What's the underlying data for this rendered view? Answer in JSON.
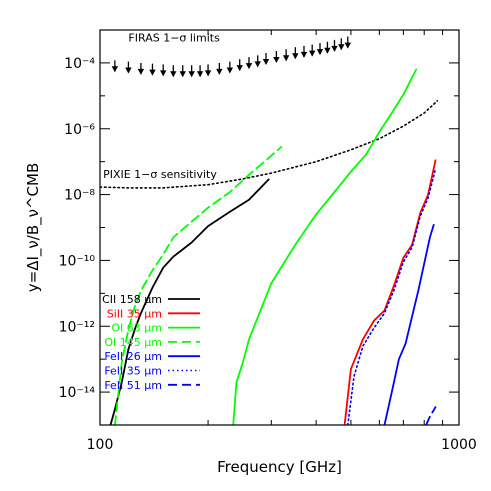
{
  "chart_data": {
    "type": "line",
    "xlabel": "Frequency [GHz]",
    "ylabel": "y=ΔI_ν/B_ν^CMB",
    "x_scale": "log",
    "y_scale": "log",
    "xlim": [
      100,
      1000
    ],
    "ylim": [
      1e-15,
      0.001
    ],
    "x_ticks": [
      {
        "value": 100,
        "label": "100"
      },
      {
        "value": 1000,
        "label": "1000"
      }
    ],
    "y_ticks": [
      {
        "value": 0.0001,
        "label": "10⁻⁴"
      },
      {
        "value": 1e-06,
        "label": "10⁻⁶"
      },
      {
        "value": 1e-08,
        "label": "10⁻⁸"
      },
      {
        "value": 1e-10,
        "label": "10⁻¹⁰"
      },
      {
        "value": 1e-12,
        "label": "10⁻¹²"
      },
      {
        "value": 1e-14,
        "label": "10⁻¹⁴"
      }
    ],
    "annotations": [
      {
        "text": "FIRAS 1−σ limits",
        "x": 120,
        "y": 0.00045
      },
      {
        "text": "PIXIE 1−σ sensitivity",
        "x": 102,
        "y": 3.2e-08
      }
    ],
    "series": [
      {
        "name": "CII 158 μm",
        "color": "#000000",
        "dash": "solid",
        "x": [
          107,
          110,
          115,
          120,
          125,
          130,
          140,
          150,
          160,
          180,
          200,
          230,
          260,
          280,
          295
        ],
        "y": [
          1e-15,
          3e-15,
          2e-14,
          2e-13,
          8e-13,
          2.5e-12,
          1.5e-11,
          6e-11,
          1.3e-10,
          3.5e-10,
          1.1e-09,
          3e-09,
          7e-09,
          1.6e-08,
          2.9e-08
        ]
      },
      {
        "name": "SiII 35 μm",
        "color": "#ff0000",
        "dash": "solid",
        "x": [
          480,
          500,
          540,
          580,
          620,
          660,
          700,
          740,
          780,
          820,
          860
        ],
        "y": [
          1e-15,
          5e-14,
          4e-13,
          1.5e-12,
          3e-12,
          1.8e-11,
          1.2e-10,
          3e-10,
          2.8e-09,
          1e-08,
          1.1e-07
        ]
      },
      {
        "name": "OI 63 μm",
        "color": "#00ff00",
        "dash": "solid",
        "x": [
          235,
          240,
          250,
          260,
          280,
          300,
          350,
          400,
          450,
          500,
          550,
          600,
          650,
          700,
          760
        ],
        "y": [
          1e-15,
          2e-14,
          8e-14,
          4e-13,
          3e-12,
          2e-11,
          3e-10,
          2.5e-09,
          1.2e-08,
          5e-08,
          1.6e-07,
          8e-07,
          3e-06,
          1.1e-05,
          6.3e-05
        ]
      },
      {
        "name": "OI 145 μm",
        "color": "#00ff00",
        "dash": "dashed",
        "x": [
          110,
          115,
          120,
          125,
          130,
          140,
          150,
          160,
          180,
          200,
          230,
          260,
          290,
          320
        ],
        "y": [
          1e-15,
          8e-14,
          8e-13,
          4e-12,
          1.2e-11,
          5e-11,
          1.5e-10,
          5e-10,
          1.5e-09,
          4e-09,
          1.2e-08,
          4e-08,
          1.1e-07,
          2.8e-07
        ]
      },
      {
        "name": "FeII 26 μm",
        "color": "#0000ff",
        "dash": "solid",
        "x": [
          620,
          650,
          680,
          710,
          740,
          770,
          800,
          830,
          850
        ],
        "y": [
          1e-15,
          1e-14,
          1e-13,
          3e-13,
          2e-12,
          1.2e-11,
          8e-11,
          5e-10,
          1.2e-09
        ]
      },
      {
        "name": "FeII 35 μm",
        "color": "#0000ff",
        "dash": "dotted",
        "x": [
          490,
          510,
          540,
          580,
          620,
          660,
          700,
          740,
          780,
          820,
          860
        ],
        "y": [
          1e-15,
          3e-14,
          2.5e-13,
          9e-13,
          2.5e-12,
          1.3e-11,
          9e-11,
          2.5e-10,
          2.2e-09,
          8e-09,
          6e-08
        ]
      },
      {
        "name": "FeII 51 μm",
        "color": "#0000ff",
        "dash": "dashed",
        "x": [
          810,
          830,
          860
        ],
        "y": [
          1e-15,
          1.8e-15,
          3.5e-15
        ]
      }
    ],
    "reference_curves": [
      {
        "name": "PIXIE 1−σ sensitivity",
        "color": "#000000",
        "dash": "dotted",
        "x": [
          100,
          120,
          150,
          200,
          250,
          300,
          400,
          500,
          600,
          700,
          800,
          870
        ],
        "y": [
          1.7e-08,
          1.6e-08,
          1.6e-08,
          2e-08,
          3e-08,
          4.5e-08,
          1e-07,
          2.3e-07,
          5e-07,
          1.2e-06,
          3e-06,
          7e-06
        ]
      }
    ],
    "upper_limits": {
      "name": "FIRAS 1−σ limits",
      "color": "#000000",
      "x": [
        110,
        120,
        130,
        140,
        150,
        160,
        170,
        180,
        190,
        200,
        215,
        230,
        245,
        260,
        275,
        290,
        310,
        330,
        350,
        370,
        390,
        410,
        430,
        450,
        470,
        490
      ],
      "y": [
        0.00012,
        0.00011,
        0.0001,
        9.5e-05,
        9e-05,
        8.5e-05,
        8.5e-05,
        8.5e-05,
        8.5e-05,
        9e-05,
        0.0001,
        0.00011,
        0.00013,
        0.00015,
        0.00017,
        0.0002,
        0.00023,
        0.00026,
        0.0003,
        0.00033,
        0.00036,
        0.0004,
        0.00044,
        0.0005,
        0.00056,
        0.00063
      ]
    }
  }
}
